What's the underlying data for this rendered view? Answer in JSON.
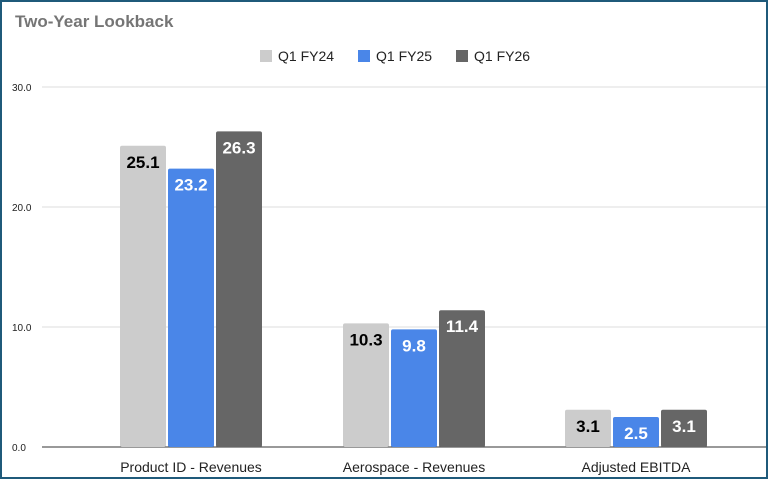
{
  "chart_data": {
    "type": "bar",
    "title": "Two-Year Lookback",
    "categories": [
      "Product ID - Revenues",
      "Aerospace - Revenues",
      "Adjusted EBITDA"
    ],
    "series": [
      {
        "name": "Q1 FY24",
        "values": [
          25.1,
          10.3,
          3.1
        ],
        "color": "#cccccc",
        "label_color": "#000000"
      },
      {
        "name": "Q1 FY25",
        "values": [
          23.2,
          9.8,
          2.5
        ],
        "color": "#4a86e8",
        "label_color": "#ffffff"
      },
      {
        "name": "Q1 FY26",
        "values": [
          26.3,
          11.4,
          3.1
        ],
        "color": "#666666",
        "label_color": "#ffffff"
      }
    ],
    "yticks": [
      "0.0",
      "10.0",
      "20.0",
      "30.0"
    ],
    "ylim": [
      0,
      30
    ],
    "grid": true,
    "legend": "top-center"
  }
}
